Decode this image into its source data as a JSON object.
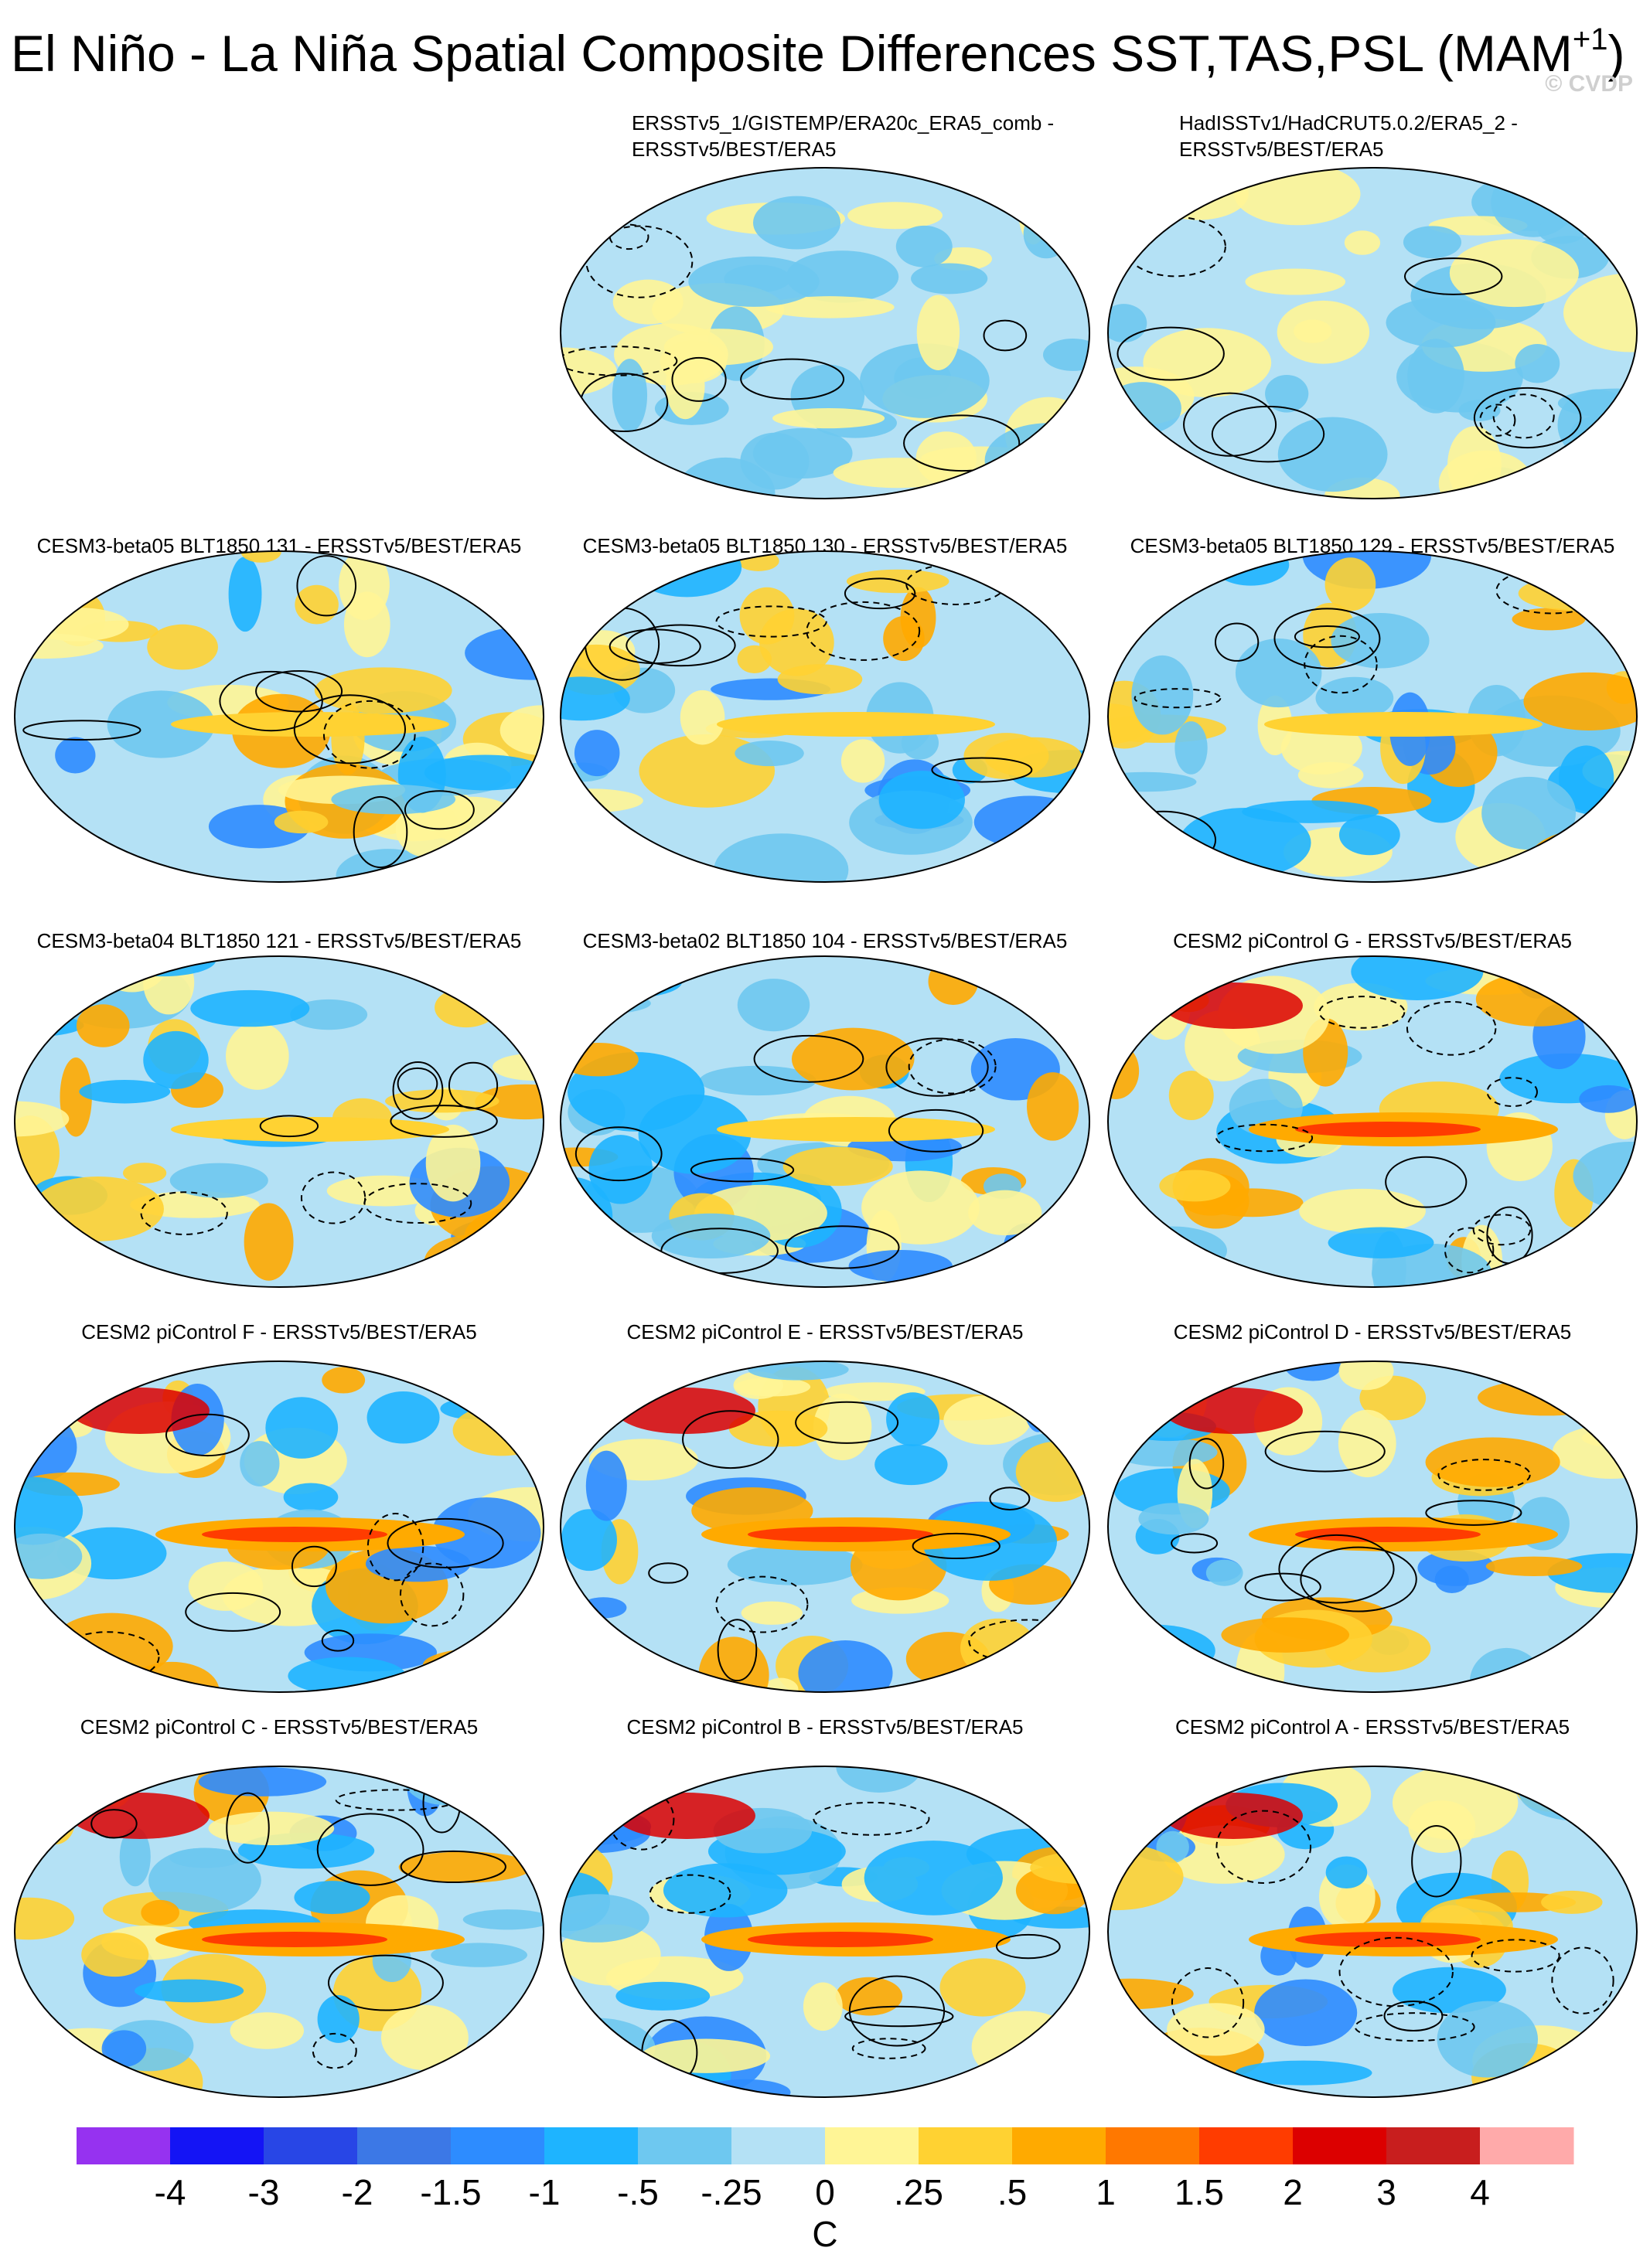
{
  "header": {
    "title": "El Niño - La Niña Spatial Composite Differences SST,TAS,PSL (MAM",
    "title_superscript": "+1",
    "title_close": ")",
    "copyright": "© CVDP"
  },
  "panels": [
    {
      "title": [
        "ERSSTv5_1/GISTEMP/ERA20c_ERA5_comb -",
        "ERSSTv5/BEST/ERA5"
      ]
    },
    {
      "title": [
        "HadISSTv1/HadCRUT5.0.2/ERA5_2 -",
        "ERSSTv5/BEST/ERA5"
      ]
    },
    {
      "title": [
        "CESM3-beta05 BLT1850 131 - ERSSTv5/BEST/ERA5"
      ]
    },
    {
      "title": [
        "CESM3-beta05 BLT1850 130 - ERSSTv5/BEST/ERA5"
      ]
    },
    {
      "title": [
        "CESM3-beta05 BLT1850 129 - ERSSTv5/BEST/ERA5"
      ]
    },
    {
      "title": [
        "CESM3-beta04 BLT1850 121 - ERSSTv5/BEST/ERA5"
      ]
    },
    {
      "title": [
        "CESM3-beta02 BLT1850 104 - ERSSTv5/BEST/ERA5"
      ]
    },
    {
      "title": [
        "CESM2 piControl G - ERSSTv5/BEST/ERA5"
      ]
    },
    {
      "title": [
        "CESM2 piControl F - ERSSTv5/BEST/ERA5"
      ]
    },
    {
      "title": [
        "CESM2 piControl E - ERSSTv5/BEST/ERA5"
      ]
    },
    {
      "title": [
        "CESM2 piControl D - ERSSTv5/BEST/ERA5"
      ]
    },
    {
      "title": [
        "CESM2 piControl C - ERSSTv5/BEST/ERA5"
      ]
    },
    {
      "title": [
        "CESM2 piControl B - ERSSTv5/BEST/ERA5"
      ]
    },
    {
      "title": [
        "CESM2 piControl A - ERSSTv5/BEST/ERA5"
      ]
    }
  ],
  "colorbar": {
    "colors": [
      "#9632f0",
      "#1414f5",
      "#2846e6",
      "#3c78e6",
      "#2d8cff",
      "#1eb4ff",
      "#6ec8f0",
      "#b4e1f5",
      "#fff596",
      "#ffd232",
      "#ffaa00",
      "#ff7800",
      "#ff3c00",
      "#dc0000",
      "#c81e1e",
      "#ffaaaa"
    ],
    "labels": [
      "-4",
      "-3",
      "-2",
      "-1.5",
      "-1",
      "-.5",
      "-.25",
      "0",
      ".25",
      ".5",
      "1",
      "1.5",
      "2",
      "3",
      "4"
    ],
    "unit": "C"
  }
}
